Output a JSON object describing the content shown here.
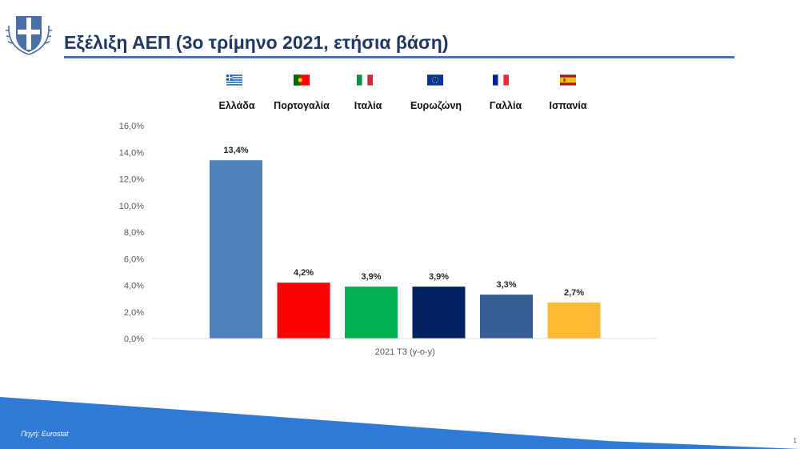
{
  "header": {
    "title": "Εξέλιξη ΑΕΠ (3ο τρίμηνο 2021, ετήσια βάση)"
  },
  "logo": {
    "icon": "greek-coat-of-arms-icon",
    "color": "#4a6fa5"
  },
  "countries": [
    {
      "name": "Ελλάδα",
      "flag": "greece-flag-icon"
    },
    {
      "name": "Πορτογαλία",
      "flag": "portugal-flag-icon"
    },
    {
      "name": "Ιταλία",
      "flag": "italy-flag-icon"
    },
    {
      "name": "Ευρωζώνη",
      "flag": "eu-flag-icon"
    },
    {
      "name": "Γαλλία",
      "flag": "france-flag-icon"
    },
    {
      "name": "Ισπανία",
      "flag": "spain-flag-icon"
    }
  ],
  "chart_data": {
    "type": "bar",
    "categories": [
      "Ελλάδα",
      "Πορτογαλία",
      "Ιταλία",
      "Ευρωζώνη",
      "Γαλλία",
      "Ισπανία"
    ],
    "values": [
      13.4,
      4.2,
      3.9,
      3.9,
      3.3,
      2.7
    ],
    "data_labels": [
      "13,4%",
      "4,2%",
      "3,9%",
      "3,9%",
      "3,3%",
      "2,7%"
    ],
    "colors": [
      "#4f81bd",
      "#ff0000",
      "#00b050",
      "#002060",
      "#375d92",
      "#ffb933"
    ],
    "xlabel": "2021 T3 (y-o-y)",
    "ylabel": "",
    "ylim": [
      0,
      16
    ],
    "yticks": [
      0,
      2,
      4,
      6,
      8,
      10,
      12,
      14,
      16
    ],
    "ytick_labels": [
      "0,0%",
      "2,0%",
      "4,0%",
      "6,0%",
      "8,0%",
      "10,0%",
      "12,0%",
      "14,0%",
      "16,0%"
    ],
    "grid": false,
    "legend": "none"
  },
  "footer": {
    "source": "Πηγή: Eurostat",
    "page_number": "1",
    "band_color": "#2e7ad6"
  }
}
